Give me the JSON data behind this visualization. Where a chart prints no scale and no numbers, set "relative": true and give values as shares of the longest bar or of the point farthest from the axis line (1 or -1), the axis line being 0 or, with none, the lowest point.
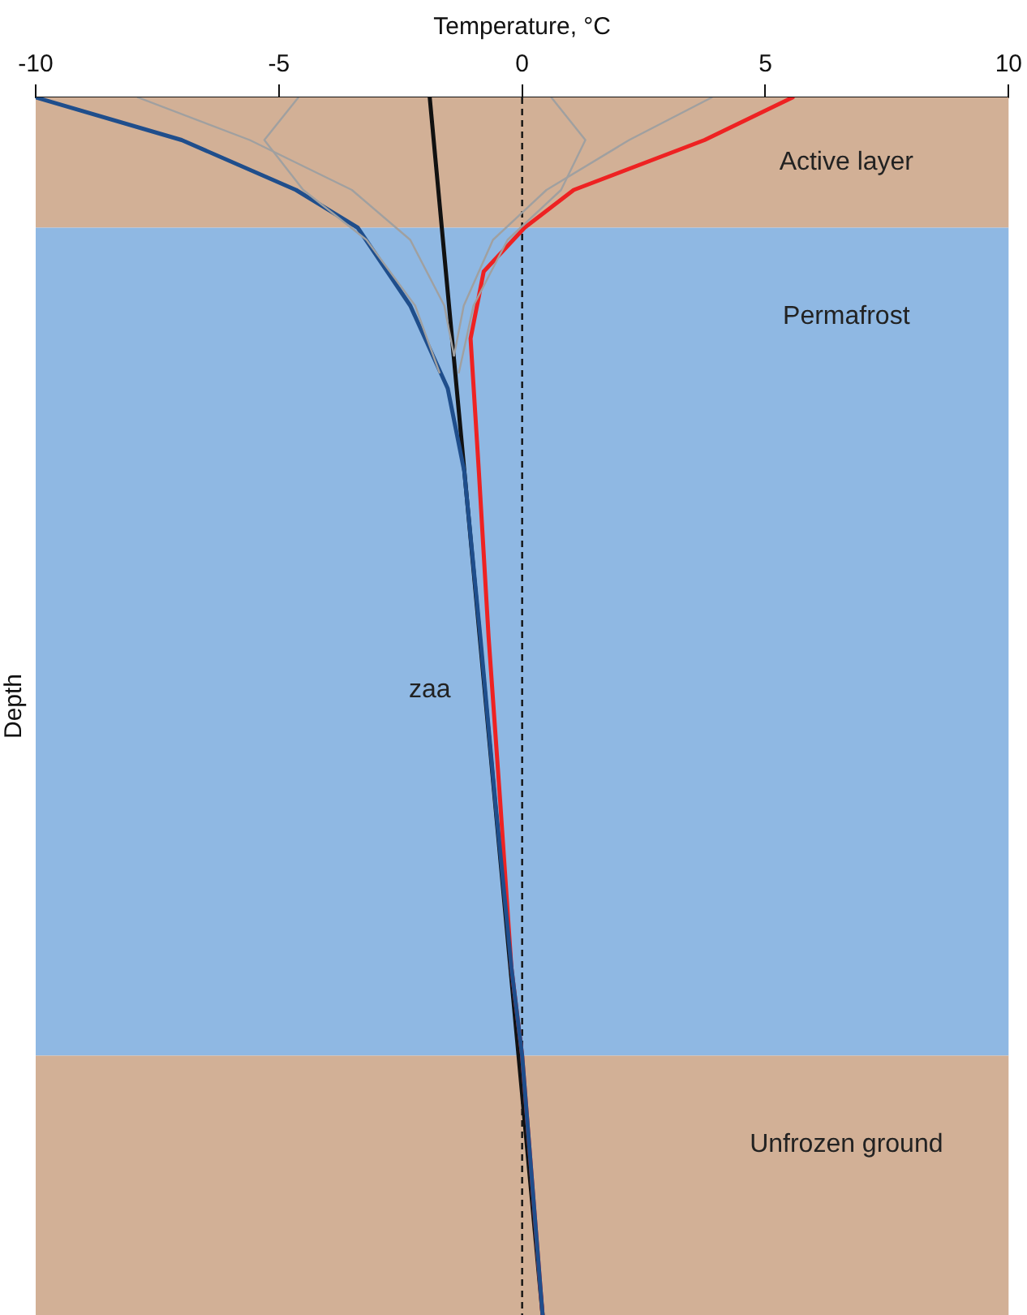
{
  "chart_data": {
    "type": "line",
    "xlabel": "Temperature, °C",
    "ylabel": "Depth",
    "relative": true,
    "grid": false,
    "legend": false,
    "marker": "none",
    "line_style": "solid",
    "xlim": [
      -10,
      10
    ],
    "xticks": [
      -10,
      -5,
      0,
      5,
      10
    ],
    "series": [
      {
        "color": "#a0a0a0",
        "x": [
          -7.9,
          -5.6,
          -3.5,
          -2.3,
          -1.6,
          -1.4
        ],
        "values": [
          1,
          0.965,
          0.924,
          0.883,
          0.829,
          0.788
        ]
      },
      {
        "color": "#a0a0a0",
        "x": [
          3.9,
          2.2,
          0.5,
          -0.6,
          -1.2,
          -1.4
        ],
        "values": [
          1,
          0.965,
          0.924,
          0.883,
          0.829,
          0.788
        ]
      },
      {
        "color": "#a0a0a0",
        "x": [
          -4.6,
          -5.3,
          -4.5,
          -3.2,
          -2.2,
          -1.7
        ],
        "values": [
          1,
          0.965,
          0.924,
          0.883,
          0.829,
          0.774
        ]
      },
      {
        "color": "#a0a0a0",
        "x": [
          0.6,
          1.3,
          0.8,
          -0.3,
          -1.0,
          -1.3
        ],
        "values": [
          1,
          0.965,
          0.924,
          0.883,
          0.829,
          0.774
        ]
      },
      {
        "color": "#1f4e8c",
        "x": [
          -10,
          -7.0,
          -4.65,
          -3.38,
          -2.3,
          -1.53,
          -1.19,
          -0.86,
          -0.55,
          -0.22,
          0,
          0.42
        ],
        "values": [
          1,
          0.965,
          0.924,
          0.893,
          0.829,
          0.761,
          0.693,
          0.557,
          0.421,
          0.285,
          0.213,
          0
        ]
      },
      {
        "color": "#ee2222",
        "x": [
          5.56,
          3.75,
          1.06,
          0.05,
          -0.79,
          -1.06,
          -0.89,
          -0.69,
          -0.45,
          -0.22,
          0,
          0.42
        ],
        "values": [
          1,
          0.965,
          0.924,
          0.893,
          0.857,
          0.802,
          0.693,
          0.557,
          0.421,
          0.285,
          0.213,
          0
        ]
      },
      {
        "color": "#111111",
        "x": [
          -1.9,
          0.42
        ],
        "values": [
          1,
          0
        ]
      }
    ],
    "bands": [
      {
        "axis": "y",
        "from": 0.893,
        "to": 1,
        "label": "Active layer",
        "color": "#d2b096"
      },
      {
        "axis": "y",
        "from": 0.213,
        "to": 0.893,
        "label": "Permafrost",
        "color": "#8fb8e3"
      },
      {
        "axis": "y",
        "from": 0,
        "to": 0.213,
        "label": "Unfrozen ground",
        "color": "#d2b096"
      }
    ],
    "ref_lines": [
      {
        "axis": "x",
        "value": 0,
        "color": "#111111",
        "line_style": "dashed"
      }
    ],
    "annotations": [
      "zaa"
    ]
  }
}
